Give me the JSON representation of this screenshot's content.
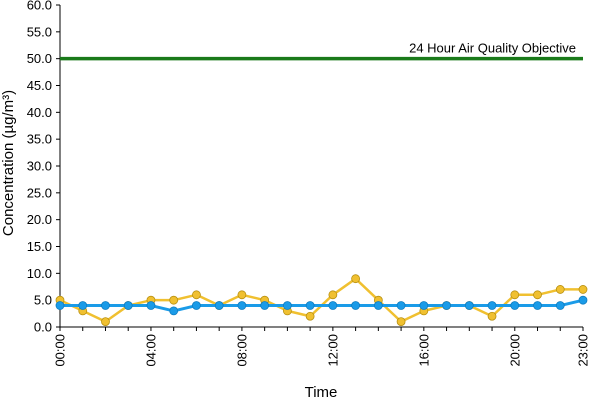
{
  "chart_data": {
    "type": "line",
    "xlabel": "Time",
    "ylabel": "Concentration (µg/m³)",
    "ylim": [
      0,
      60
    ],
    "y_ticks": [
      "0.0",
      "5.0",
      "10.0",
      "15.0",
      "20.0",
      "25.0",
      "30.0",
      "35.0",
      "40.0",
      "45.0",
      "50.0",
      "55.0",
      "60.0"
    ],
    "x_tick_labels": [
      "00:00",
      "04:00",
      "08:00",
      "12:00",
      "16:00",
      "20:00",
      "23:00"
    ],
    "x_tick_hours": [
      0,
      4,
      8,
      12,
      16,
      20,
      23
    ],
    "x": [
      0,
      1,
      2,
      3,
      4,
      5,
      6,
      7,
      8,
      9,
      10,
      11,
      12,
      13,
      14,
      15,
      16,
      17,
      18,
      19,
      20,
      21,
      22,
      23
    ],
    "series": [
      {
        "color": "#f0c030",
        "values": [
          5,
          3,
          1,
          4,
          5,
          5,
          6,
          4,
          6,
          5,
          3,
          2,
          6,
          9,
          5,
          1,
          3,
          4,
          4,
          2,
          6,
          6,
          7,
          7
        ]
      },
      {
        "color": "#1a9be8",
        "values": [
          4,
          4,
          4,
          4,
          4,
          3,
          4,
          4,
          4,
          4,
          4,
          4,
          4,
          4,
          4,
          4,
          4,
          4,
          4,
          4,
          4,
          4,
          4,
          5
        ]
      }
    ],
    "reference_line": {
      "value": 50,
      "label": "24 Hour Air Quality Objective",
      "color": "#1a7a1a"
    },
    "grid": false,
    "legend": "none"
  }
}
